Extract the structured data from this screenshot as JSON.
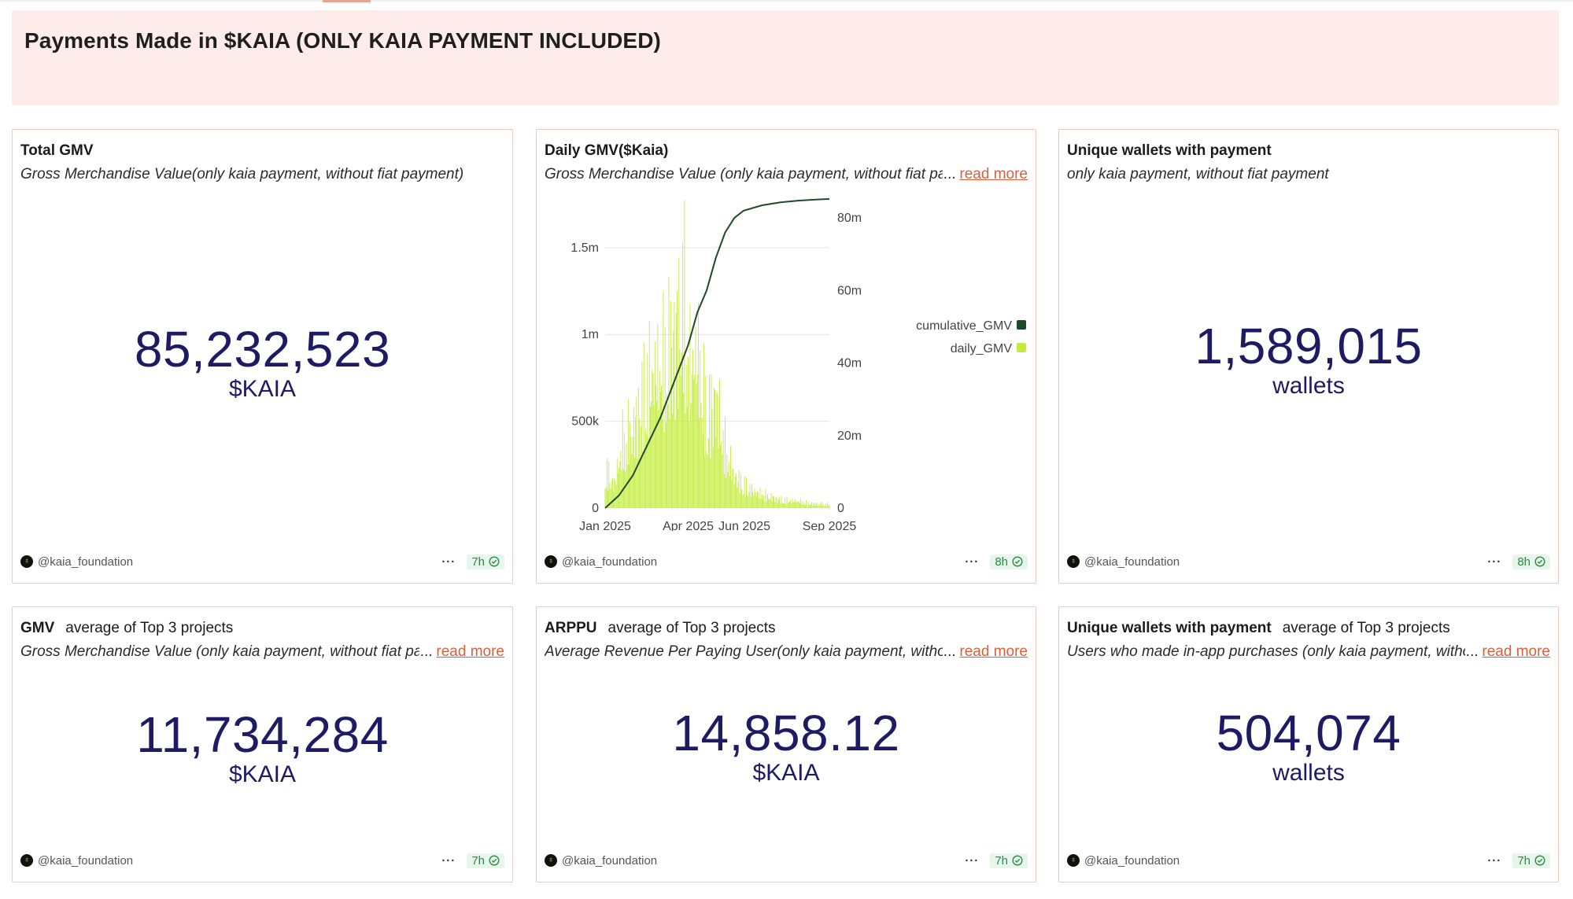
{
  "header": {
    "title": "Payments Made in $KAIA (ONLY KAIA PAYMENT INCLUDED)"
  },
  "cards": {
    "total_gmv": {
      "title": "Total GMV",
      "description": "Gross Merchandise Value(only kaia payment, without fiat payment)",
      "value": "85,232,523",
      "unit": "$KAIA",
      "author": "@kaia_foundation",
      "age": "7h"
    },
    "daily_gmv": {
      "title": "Daily GMV($Kaia)",
      "description": "Gross Merchandise Value (only kaia payment, without fiat payment)",
      "read_more": "read more",
      "author": "@kaia_foundation",
      "age": "8h"
    },
    "unique_wallets": {
      "title": "Unique wallets with payment",
      "description": "only kaia payment, without fiat payment",
      "value": "1,589,015",
      "unit": "wallets",
      "author": "@kaia_foundation",
      "age": "8h"
    },
    "gmv_top3": {
      "title": "GMV",
      "subtitle": "average of Top 3 projects",
      "description": "Gross Merchandise Value (only kaia payment, without fiat payment)",
      "read_more": "read more",
      "value": "11,734,284",
      "unit": "$KAIA",
      "author": "@kaia_foundation",
      "age": "7h"
    },
    "arppu_top3": {
      "title": "ARPPU",
      "subtitle": "average of Top 3 projects",
      "description": "Average Revenue Per Paying User(only kaia payment, without fiat payment)",
      "read_more": "read more",
      "value": "14,858.12",
      "unit": "$KAIA",
      "author": "@kaia_foundation",
      "age": "7h"
    },
    "wallets_top3": {
      "title": "Unique wallets with payment",
      "subtitle": "average of Top 3 projects",
      "description": "Users who made in-app purchases (only kaia payment, without fiat payment)",
      "read_more": "read more",
      "value": "504,074",
      "unit": "wallets",
      "author": "@kaia_foundation",
      "age": "7h"
    }
  },
  "colors": {
    "accent": "#d9603b",
    "number": "#1e1a63",
    "daily_bar": "#c3ec3a",
    "cumulative_line": "#1f4a2a",
    "fresh_badge_bg": "#e6f6ea",
    "fresh_badge_fg": "#2f8a48"
  },
  "chart_data": {
    "type": "bar",
    "title": "Daily GMV($Kaia)",
    "x_tick_labels": [
      "Jan 2025",
      "Apr 2025",
      "Jun 2025",
      "Sep 2025"
    ],
    "x_ticks": [
      0,
      90,
      151,
      243
    ],
    "x_range": [
      0,
      243
    ],
    "left_axis": {
      "ticks": [
        "0",
        "500k",
        "1m",
        "1.5m"
      ],
      "values": [
        0,
        500000,
        1000000,
        1500000
      ],
      "range": [
        0,
        1780000
      ]
    },
    "right_axis": {
      "ticks": [
        "0",
        "20m",
        "40m",
        "60m",
        "80m"
      ],
      "values": [
        0,
        20000000,
        40000000,
        60000000,
        80000000
      ],
      "range": [
        0,
        85232523
      ]
    },
    "legend": [
      "cumulative_GMV",
      "daily_GMV"
    ],
    "legend_position": "right",
    "series": [
      {
        "name": "daily_GMV",
        "axis": "left",
        "type": "bar",
        "sample_day": [
          0,
          10,
          20,
          30,
          40,
          50,
          60,
          70,
          80,
          85,
          90,
          100,
          110,
          120,
          130,
          140,
          150,
          160,
          170,
          180,
          190,
          200,
          210,
          220,
          230,
          243
        ],
        "values": [
          320000,
          190000,
          560000,
          620000,
          880000,
          1080000,
          1090000,
          1320000,
          1500000,
          1780000,
          1100000,
          1250000,
          750000,
          900000,
          480000,
          260000,
          190000,
          140000,
          110000,
          90000,
          70000,
          60000,
          55000,
          40000,
          35000,
          30000
        ]
      },
      {
        "name": "cumulative_GMV",
        "axis": "right",
        "type": "line",
        "day": [
          0,
          15,
          30,
          45,
          60,
          75,
          90,
          100,
          110,
          120,
          130,
          140,
          150,
          170,
          190,
          210,
          230,
          243
        ],
        "values": [
          0,
          3500000,
          9000000,
          17000000,
          25000000,
          35000000,
          45000000,
          54000000,
          60000000,
          69000000,
          76000000,
          80000000,
          82000000,
          83500000,
          84300000,
          84800000,
          85100000,
          85232523
        ]
      }
    ]
  }
}
